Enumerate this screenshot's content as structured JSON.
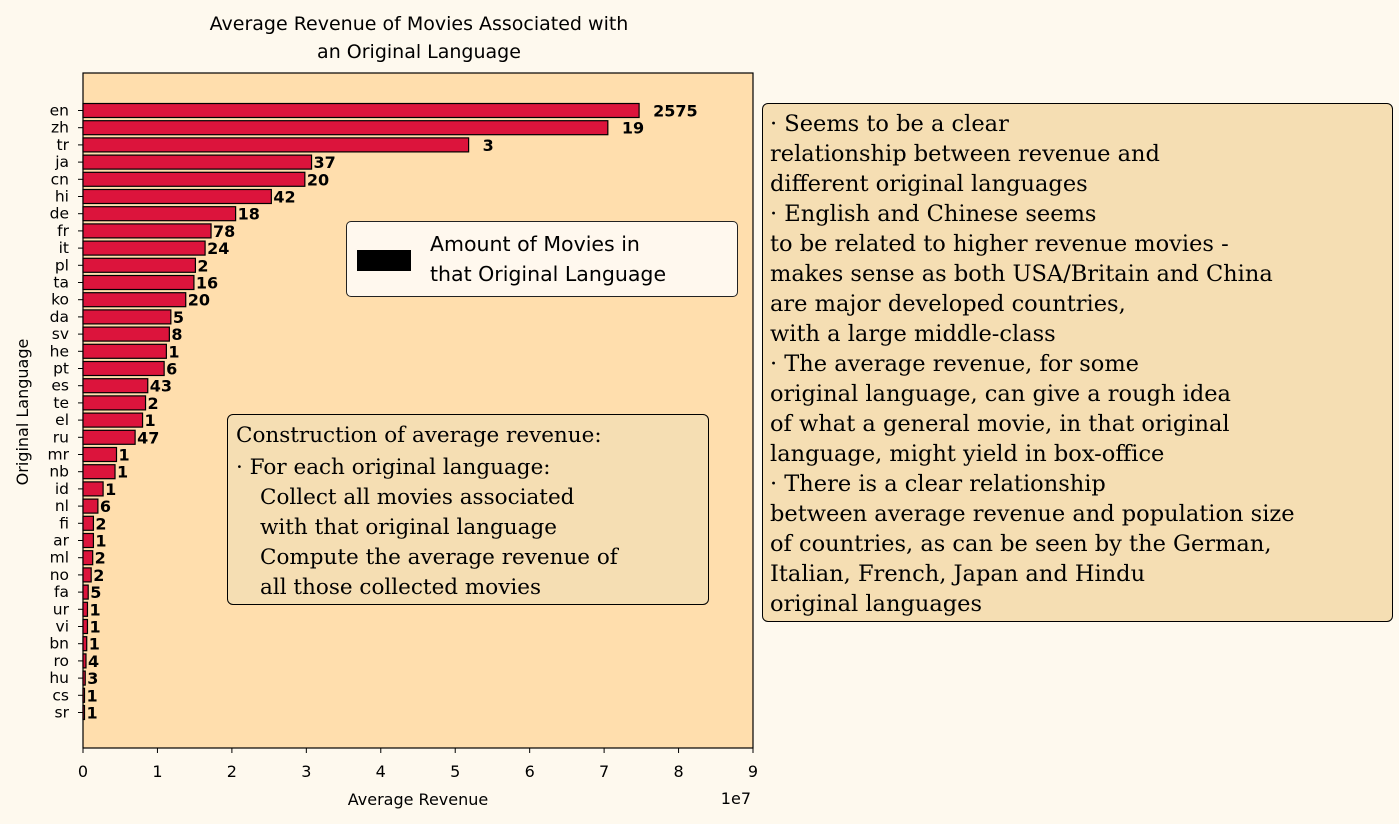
{
  "chart_data": {
    "type": "bar",
    "orientation": "horizontal",
    "title_lines": [
      "Average Revenue of Movies Associated with",
      "an Original Language"
    ],
    "xlabel": "Average Revenue",
    "ylabel": "Original Language",
    "x_scale_label": "1e7",
    "xlim": [
      0,
      9
    ],
    "xticks": [
      "0",
      "1",
      "2",
      "3",
      "4",
      "5",
      "6",
      "7",
      "8",
      "9"
    ],
    "grid": false,
    "bar_color": "#dc143c",
    "bar_edge_color": "#000000",
    "plot_background": "#ffdead",
    "page_background": "#fef9ee",
    "categories": [
      "en",
      "zh",
      "tr",
      "ja",
      "cn",
      "hi",
      "de",
      "fr",
      "it",
      "pl",
      "ta",
      "ko",
      "da",
      "sv",
      "he",
      "pt",
      "es",
      "te",
      "el",
      "ru",
      "mr",
      "nb",
      "id",
      "nl",
      "fi",
      "ar",
      "ml",
      "no",
      "fa",
      "ur",
      "vi",
      "bn",
      "ro",
      "hu",
      "cs",
      "sr"
    ],
    "values": [
      7.47,
      7.05,
      5.18,
      3.07,
      2.98,
      2.53,
      2.05,
      1.72,
      1.64,
      1.51,
      1.49,
      1.38,
      1.18,
      1.16,
      1.12,
      1.09,
      0.87,
      0.84,
      0.8,
      0.7,
      0.45,
      0.43,
      0.27,
      0.2,
      0.14,
      0.14,
      0.13,
      0.11,
      0.07,
      0.06,
      0.06,
      0.05,
      0.04,
      0.03,
      0.02,
      0.01
    ],
    "bar_labels": [
      "2575",
      "19",
      "3",
      "37",
      "20",
      "42",
      "18",
      "78",
      "24",
      "2",
      "16",
      "20",
      "5",
      "8",
      "1",
      "6",
      "43",
      "2",
      "1",
      "47",
      "1",
      "1",
      "1",
      "6",
      "2",
      "1",
      "2",
      "2",
      "5",
      "1",
      "1",
      "1",
      "4",
      "3",
      "1",
      "1"
    ],
    "legend": {
      "placement": "center-right",
      "label_lines": [
        "Amount of Movies in",
        "that Original Language"
      ],
      "swatch_color": "#000000"
    }
  },
  "notes": {
    "construction": {
      "lines": [
        "Construction of average revenue:",
        "· For each original language:",
        "Collect all movies associated",
        "with that original language",
        "Compute the average revenue of",
        "all those collected movies"
      ]
    },
    "observations": {
      "lines": [
        "· Seems to be a clear",
        "relationship between revenue and",
        "different original languages",
        "· English and Chinese seems",
        "to be related to higher revenue movies -",
        "makes sense as both USA/Britain and China",
        "are major developed countries,",
        "with a large middle-class",
        "· The average revenue, for some",
        "original language, can give a rough idea",
        "of what a general movie, in that original",
        "language, might yield in box-office",
        "· There is a clear relationship",
        "between average revenue and population size",
        "of countries, as can be seen by the German,",
        "Italian, French, Japan and Hindu",
        "original languages"
      ]
    }
  }
}
